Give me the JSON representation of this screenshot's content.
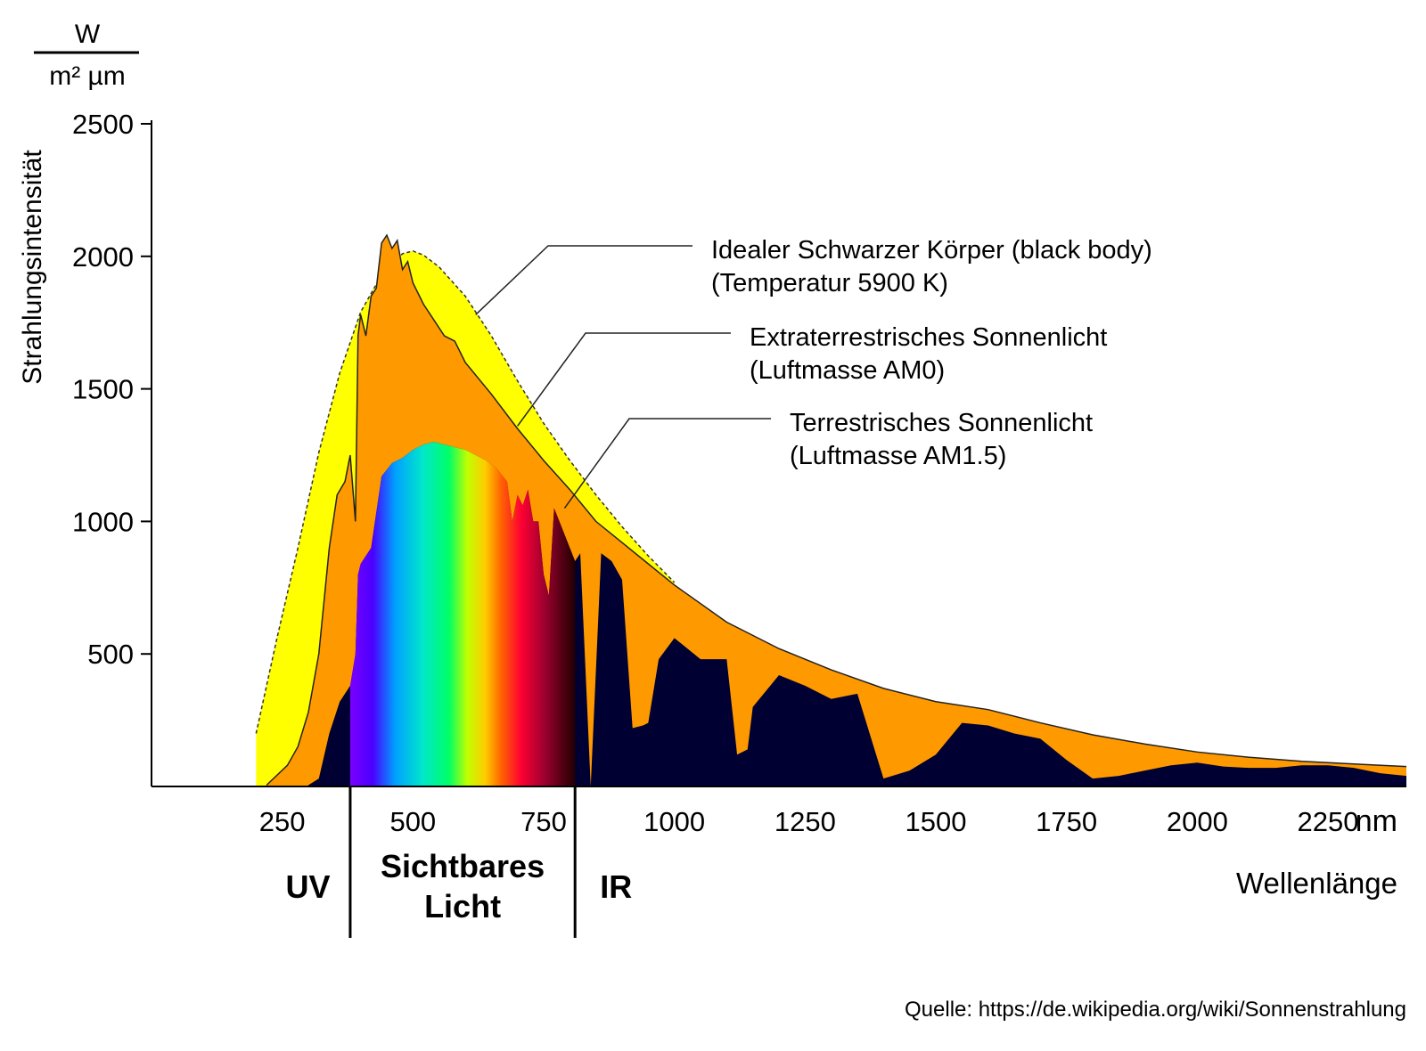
{
  "chart_data": {
    "type": "area",
    "title": "",
    "ylabel": "Strahlungsintensität",
    "yunit_num": "W",
    "yunit_den": "m² µm",
    "xlabel": "Wellenlänge",
    "xunit": "nm",
    "xlim": [
      0,
      2400
    ],
    "ylim": [
      0,
      2500
    ],
    "xticks": [
      250,
      500,
      750,
      1000,
      1250,
      1500,
      1750,
      2000,
      2250
    ],
    "yticks": [
      500,
      1000,
      1500,
      2000,
      2500
    ],
    "regions": [
      {
        "label": "UV"
      },
      {
        "label_line1": "Sichtbares",
        "label_line2": "Licht"
      },
      {
        "label": "IR"
      }
    ],
    "region_boundaries": [
      380,
      810
    ],
    "series": [
      {
        "name": "Idealer Schwarzer Körper (black body)",
        "name2": "(Temperatur 5900 K)",
        "color": "#ffff00",
        "x": [
          200,
          240,
          280,
          320,
          360,
          400,
          440,
          480,
          500,
          520,
          550,
          600,
          650,
          700,
          750,
          800,
          850,
          900,
          950,
          1000
        ],
        "y": [
          200,
          560,
          900,
          1260,
          1560,
          1790,
          1930,
          2010,
          2020,
          2005,
          1960,
          1850,
          1700,
          1530,
          1370,
          1230,
          1100,
          980,
          870,
          770
        ]
      },
      {
        "name": "Extraterrestrisches Sonnenlicht",
        "name2": "(Luftmasse AM0)",
        "color": "#ff9900",
        "x": [
          220,
          260,
          280,
          300,
          320,
          340,
          355,
          370,
          380,
          390,
          395,
          400,
          410,
          420,
          430,
          440,
          450,
          460,
          470,
          480,
          490,
          500,
          520,
          540,
          560,
          580,
          600,
          650,
          700,
          750,
          800,
          850,
          900,
          950,
          1000,
          1100,
          1200,
          1300,
          1400,
          1500,
          1600,
          1700,
          1800,
          1900,
          2000,
          2100,
          2200,
          2300,
          2400
        ],
        "y": [
          5,
          80,
          150,
          280,
          500,
          900,
          1100,
          1150,
          1250,
          1000,
          1700,
          1780,
          1700,
          1850,
          1880,
          2050,
          2080,
          2030,
          2060,
          1950,
          1980,
          1900,
          1820,
          1760,
          1700,
          1680,
          1600,
          1480,
          1350,
          1230,
          1120,
          1000,
          920,
          840,
          760,
          620,
          520,
          440,
          370,
          320,
          290,
          240,
          195,
          160,
          130,
          110,
          95,
          85,
          75
        ]
      },
      {
        "name": "Terrestrisches Sonnenlicht",
        "name2": "(Luftmasse AM1.5)",
        "color": "#000033",
        "x": [
          300,
          320,
          340,
          360,
          380,
          390,
          395,
          400,
          420,
          440,
          460,
          480,
          500,
          520,
          540,
          560,
          580,
          600,
          620,
          640,
          660,
          680,
          690,
          700,
          710,
          720,
          730,
          740,
          750,
          760,
          770,
          780,
          790,
          800,
          810,
          820,
          840,
          860,
          880,
          900,
          920,
          940,
          950,
          970,
          1000,
          1050,
          1100,
          1120,
          1140,
          1150,
          1200,
          1250,
          1300,
          1350,
          1400,
          1450,
          1500,
          1550,
          1600,
          1650,
          1700,
          1750,
          1800,
          1850,
          1900,
          1950,
          2000,
          2050,
          2100,
          2150,
          2200,
          2250,
          2300,
          2350,
          2400
        ],
        "y": [
          5,
          30,
          200,
          320,
          380,
          500,
          800,
          840,
          900,
          1170,
          1220,
          1240,
          1270,
          1290,
          1300,
          1290,
          1280,
          1270,
          1250,
          1230,
          1200,
          1150,
          1000,
          1100,
          1060,
          1120,
          1000,
          1000,
          800,
          720,
          1050,
          1000,
          950,
          900,
          850,
          880,
          0,
          880,
          850,
          780,
          220,
          230,
          240,
          480,
          560,
          480,
          480,
          120,
          140,
          300,
          420,
          380,
          330,
          350,
          30,
          60,
          120,
          240,
          230,
          200,
          180,
          100,
          30,
          40,
          60,
          80,
          90,
          75,
          70,
          70,
          80,
          80,
          70,
          50,
          40
        ]
      }
    ]
  },
  "source_text": "Quelle: https://de.wikipedia.org/wiki/Sonnenstrahlung"
}
